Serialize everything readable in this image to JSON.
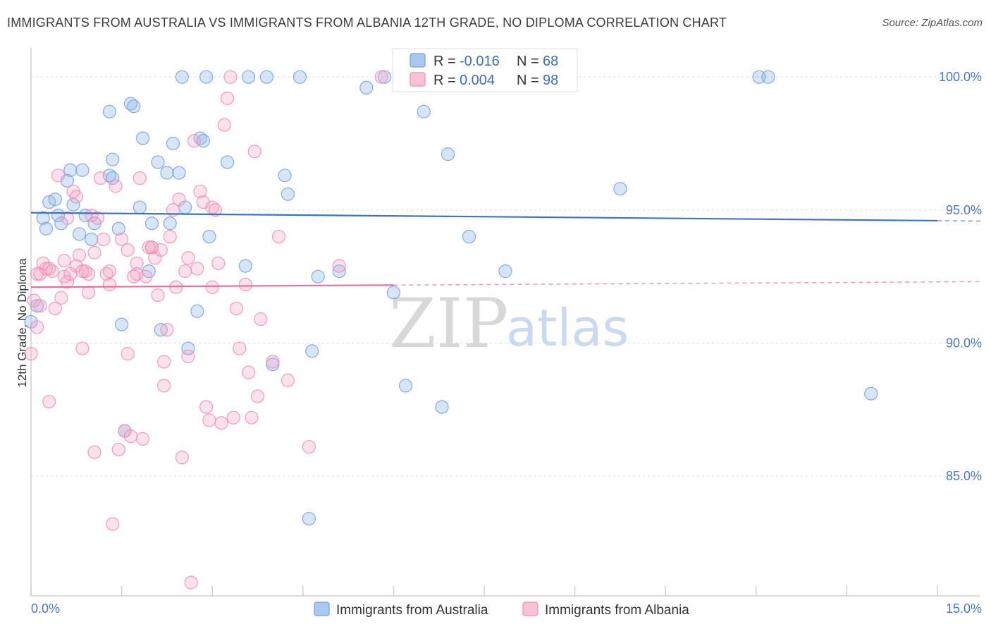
{
  "title": "IMMIGRANTS FROM AUSTRALIA VS IMMIGRANTS FROM ALBANIA 12TH GRADE, NO DIPLOMA CORRELATION CHART",
  "source": "Source: ZipAtlas.com",
  "watermark": {
    "zip": "ZIP",
    "atlas": "atlas"
  },
  "legend_top": {
    "rows": [
      {
        "r_label": "R =",
        "r_value": "-0.016",
        "n_label": "N =",
        "n_value": "68",
        "color": "#6fa0e0"
      },
      {
        "r_label": "R =",
        "r_value": "0.004",
        "n_label": "N =",
        "n_value": "98",
        "color": "#f08cb0"
      }
    ]
  },
  "legend_bottom": [
    {
      "label": "Immigrants from Australia",
      "color": "#6fa0e0"
    },
    {
      "label": "Immigrants from Albania",
      "color": "#f08cb0"
    }
  ],
  "chart_data": {
    "type": "scatter",
    "title": "IMMIGRANTS FROM AUSTRALIA VS IMMIGRANTS FROM ALBANIA 12TH GRADE, NO DIPLOMA CORRELATION CHART",
    "xlabel": "",
    "ylabel": "12th Grade, No Diploma",
    "xlim": [
      0,
      15
    ],
    "ylim": [
      80.5,
      100.8
    ],
    "x_tick_labels": [
      "0.0%",
      "15.0%"
    ],
    "y_ticks": [
      85,
      90,
      95,
      100
    ],
    "y_tick_labels": [
      "85.0%",
      "90.0%",
      "95.0%",
      "100.0%"
    ],
    "series": [
      {
        "name": "Immigrants from Australia",
        "color": "#6fa0e0",
        "trend": {
          "x0": 0,
          "y0": 94.9,
          "x1": 15,
          "y1": 94.6,
          "solid_until": 15
        },
        "points": [
          [
            0.0,
            90.8
          ],
          [
            0.1,
            91.4
          ],
          [
            0.2,
            94.7
          ],
          [
            0.25,
            94.3
          ],
          [
            0.3,
            95.3
          ],
          [
            0.4,
            95.4
          ],
          [
            0.45,
            94.8
          ],
          [
            0.5,
            94.5
          ],
          [
            0.6,
            96.1
          ],
          [
            0.65,
            96.5
          ],
          [
            0.7,
            95.2
          ],
          [
            0.8,
            94.1
          ],
          [
            0.85,
            96.5
          ],
          [
            0.9,
            94.8
          ],
          [
            1.0,
            93.9
          ],
          [
            1.05,
            94.5
          ],
          [
            1.3,
            96.3
          ],
          [
            1.35,
            96.2
          ],
          [
            1.3,
            98.7
          ],
          [
            1.35,
            96.9
          ],
          [
            1.45,
            94.3
          ],
          [
            1.5,
            90.7
          ],
          [
            1.55,
            86.7
          ],
          [
            1.65,
            99.0
          ],
          [
            1.7,
            98.9
          ],
          [
            1.8,
            95.1
          ],
          [
            1.85,
            97.7
          ],
          [
            1.95,
            92.7
          ],
          [
            2.0,
            94.5
          ],
          [
            2.1,
            96.8
          ],
          [
            2.15,
            90.5
          ],
          [
            2.25,
            96.4
          ],
          [
            2.3,
            94.5
          ],
          [
            2.35,
            97.5
          ],
          [
            2.45,
            96.4
          ],
          [
            2.5,
            100.0
          ],
          [
            2.55,
            95.1
          ],
          [
            2.6,
            89.8
          ],
          [
            2.75,
            91.2
          ],
          [
            2.8,
            97.7
          ],
          [
            2.85,
            97.6
          ],
          [
            2.9,
            100.0
          ],
          [
            2.95,
            94.0
          ],
          [
            3.25,
            96.8
          ],
          [
            3.55,
            92.9
          ],
          [
            3.6,
            100.0
          ],
          [
            3.9,
            100.0
          ],
          [
            4.0,
            89.2
          ],
          [
            4.2,
            96.3
          ],
          [
            4.25,
            95.6
          ],
          [
            4.45,
            100.0
          ],
          [
            4.65,
            89.7
          ],
          [
            4.6,
            83.4
          ],
          [
            4.75,
            92.5
          ],
          [
            5.1,
            92.7
          ],
          [
            5.55,
            99.6
          ],
          [
            5.85,
            100.0
          ],
          [
            6.0,
            91.9
          ],
          [
            6.2,
            88.4
          ],
          [
            6.5,
            98.7
          ],
          [
            6.8,
            87.6
          ],
          [
            6.9,
            97.1
          ],
          [
            7.25,
            94.0
          ],
          [
            7.85,
            92.7
          ],
          [
            9.75,
            95.8
          ],
          [
            12.05,
            100.0
          ],
          [
            12.2,
            100.0
          ],
          [
            13.9,
            88.1
          ]
        ]
      },
      {
        "name": "Immigrants from Albania",
        "color": "#f08cb0",
        "trend": {
          "x0": 0,
          "y0": 92.1,
          "x1": 15,
          "y1": 92.3,
          "solid_until": 6.0
        },
        "points": [
          [
            0.0,
            89.6
          ],
          [
            0.05,
            91.6
          ],
          [
            0.1,
            92.6
          ],
          [
            0.1,
            90.6
          ],
          [
            0.15,
            91.4
          ],
          [
            0.2,
            93.0
          ],
          [
            0.25,
            92.8
          ],
          [
            0.3,
            87.8
          ],
          [
            0.35,
            92.7
          ],
          [
            0.4,
            91.3
          ],
          [
            0.45,
            96.3
          ],
          [
            0.5,
            91.7
          ],
          [
            0.55,
            92.5
          ],
          [
            0.6,
            94.7
          ],
          [
            0.6,
            92.3
          ],
          [
            0.7,
            95.7
          ],
          [
            0.75,
            95.5
          ],
          [
            0.75,
            92.9
          ],
          [
            0.8,
            93.3
          ],
          [
            0.85,
            89.8
          ],
          [
            0.85,
            92.7
          ],
          [
            0.95,
            91.9
          ],
          [
            0.95,
            92.6
          ],
          [
            1.0,
            94.8
          ],
          [
            1.05,
            93.4
          ],
          [
            1.05,
            85.9
          ],
          [
            1.1,
            94.7
          ],
          [
            1.15,
            96.2
          ],
          [
            1.2,
            93.9
          ],
          [
            1.25,
            92.6
          ],
          [
            1.3,
            92.2
          ],
          [
            1.3,
            92.7
          ],
          [
            1.35,
            83.2
          ],
          [
            1.4,
            95.9
          ],
          [
            1.45,
            86.0
          ],
          [
            1.5,
            93.9
          ],
          [
            1.55,
            86.7
          ],
          [
            1.6,
            89.6
          ],
          [
            1.65,
            86.5
          ],
          [
            1.75,
            93.0
          ],
          [
            1.75,
            92.6
          ],
          [
            1.8,
            96.2
          ],
          [
            1.85,
            86.4
          ],
          [
            1.9,
            92.5
          ],
          [
            1.95,
            93.6
          ],
          [
            2.0,
            93.6
          ],
          [
            2.05,
            93.2
          ],
          [
            2.1,
            91.8
          ],
          [
            2.15,
            93.5
          ],
          [
            2.2,
            88.4
          ],
          [
            2.2,
            89.3
          ],
          [
            2.25,
            90.5
          ],
          [
            2.3,
            94.0
          ],
          [
            2.35,
            95.0
          ],
          [
            2.4,
            92.1
          ],
          [
            2.45,
            95.4
          ],
          [
            2.5,
            85.7
          ],
          [
            2.55,
            92.7
          ],
          [
            2.6,
            89.5
          ],
          [
            2.65,
            81.0
          ],
          [
            2.7,
            97.6
          ],
          [
            2.75,
            92.8
          ],
          [
            2.8,
            95.7
          ],
          [
            2.85,
            95.3
          ],
          [
            2.9,
            87.6
          ],
          [
            2.95,
            87.1
          ],
          [
            3.0,
            95.1
          ],
          [
            3.05,
            95.0
          ],
          [
            3.1,
            93.0
          ],
          [
            3.15,
            87.0
          ],
          [
            3.2,
            98.2
          ],
          [
            3.25,
            99.2
          ],
          [
            3.3,
            100.0
          ],
          [
            3.35,
            87.2
          ],
          [
            3.4,
            91.3
          ],
          [
            3.45,
            89.8
          ],
          [
            3.55,
            92.2
          ],
          [
            3.6,
            88.9
          ],
          [
            3.65,
            87.2
          ],
          [
            3.7,
            97.2
          ],
          [
            3.75,
            88.0
          ],
          [
            3.8,
            90.9
          ],
          [
            4.0,
            89.3
          ],
          [
            4.1,
            94.0
          ],
          [
            4.25,
            88.6
          ],
          [
            4.6,
            86.1
          ],
          [
            5.1,
            92.9
          ],
          [
            5.8,
            100.0
          ],
          [
            0.15,
            92.6
          ],
          [
            0.55,
            93.1
          ],
          [
            0.9,
            92.7
          ],
          [
            1.6,
            93.5
          ],
          [
            1.7,
            92.5
          ],
          [
            2.0,
            93.6
          ],
          [
            2.6,
            93.2
          ],
          [
            3.0,
            92.1
          ],
          [
            0.3,
            92.8
          ],
          [
            0.65,
            92.6
          ]
        ]
      }
    ]
  }
}
